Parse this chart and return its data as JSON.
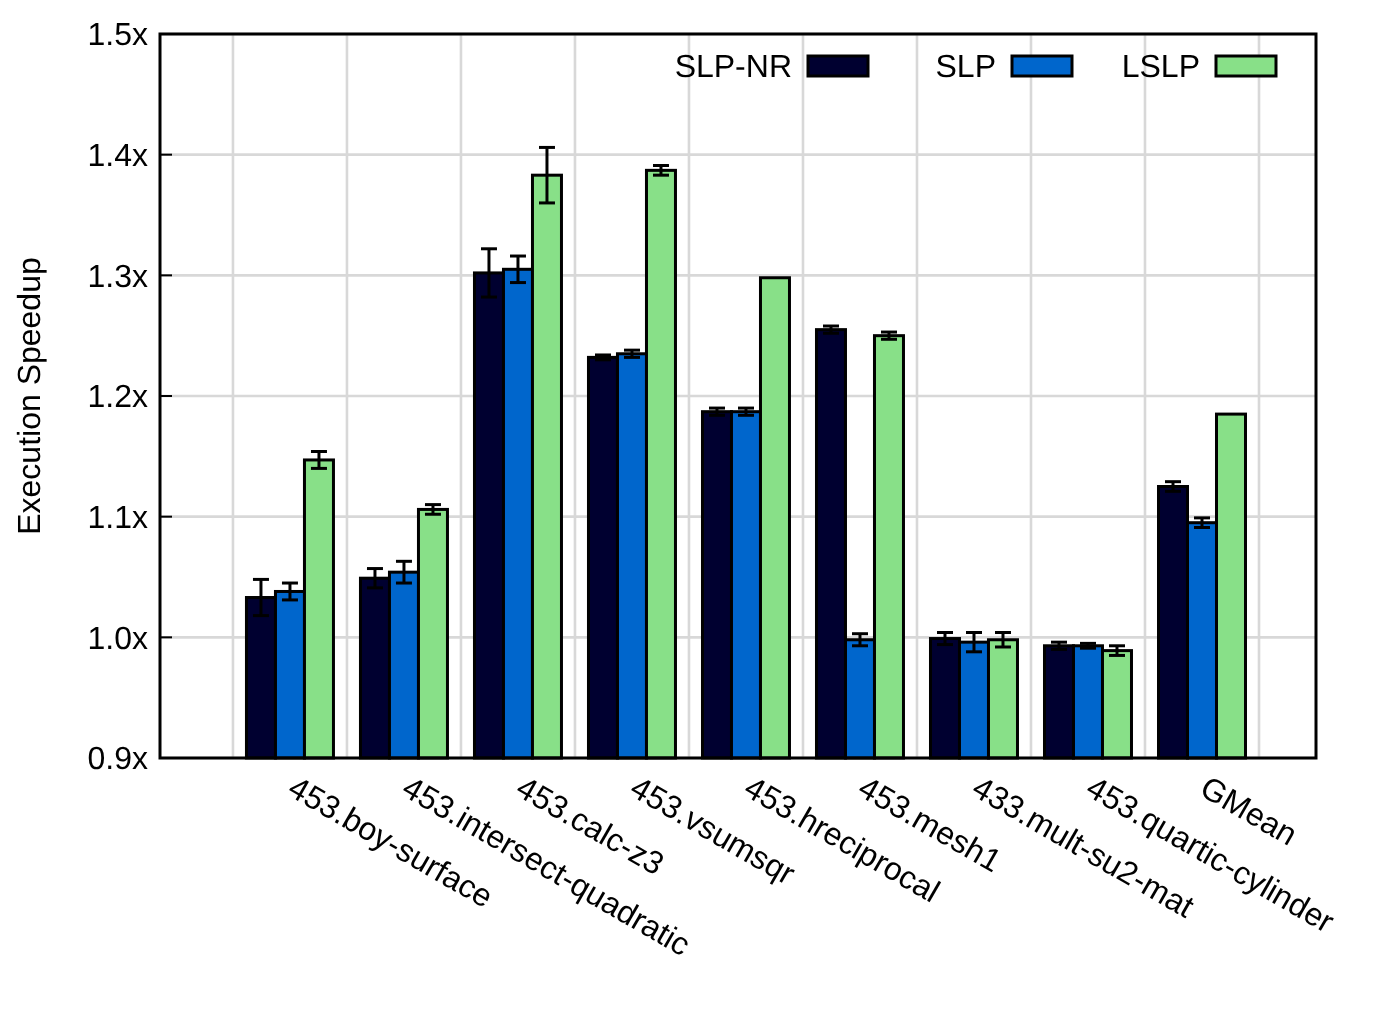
{
  "chart_data": {
    "type": "bar",
    "ylabel": "Execution Speedup",
    "categories": [
      "453.boy-surface",
      "453.intersect-quadratic",
      "453.calc-z3",
      "453.vsumsqr",
      "453.hreciprocal",
      "453.mesh1",
      "433.mult-su2-mat",
      "453.quartic-cylinder",
      "GMean"
    ],
    "series": [
      {
        "name": "SLP-NR",
        "color": "#000030",
        "values": [
          1.033,
          1.049,
          1.302,
          1.232,
          1.187,
          1.255,
          0.999,
          0.993,
          1.125
        ],
        "errors": [
          0.015,
          0.008,
          0.02,
          0.002,
          0.003,
          0.003,
          0.005,
          0.003,
          0.004
        ]
      },
      {
        "name": "SLP",
        "color": "#0066cc",
        "values": [
          1.038,
          1.054,
          1.305,
          1.235,
          1.187,
          0.998,
          0.996,
          0.993,
          1.095
        ],
        "errors": [
          0.007,
          0.009,
          0.011,
          0.003,
          0.003,
          0.005,
          0.008,
          0.002,
          0.004
        ]
      },
      {
        "name": "LSLP",
        "color": "#88e088",
        "values": [
          1.147,
          1.106,
          1.383,
          1.387,
          1.298,
          1.25,
          0.998,
          0.989,
          1.185
        ],
        "errors": [
          0.007,
          0.004,
          0.023,
          0.004,
          null,
          0.003,
          0.006,
          0.004,
          null
        ]
      }
    ],
    "ylim": [
      0.9,
      1.5
    ],
    "yticks": [
      {
        "value": 0.9,
        "label": "0.9x"
      },
      {
        "value": 1.0,
        "label": "1.0x"
      },
      {
        "value": 1.1,
        "label": "1.1x"
      },
      {
        "value": 1.2,
        "label": "1.2x"
      },
      {
        "value": 1.3,
        "label": "1.3x"
      },
      {
        "value": 1.4,
        "label": "1.4x"
      },
      {
        "value": 1.5,
        "label": "1.5x"
      }
    ],
    "grid": true,
    "legend": "top right"
  }
}
